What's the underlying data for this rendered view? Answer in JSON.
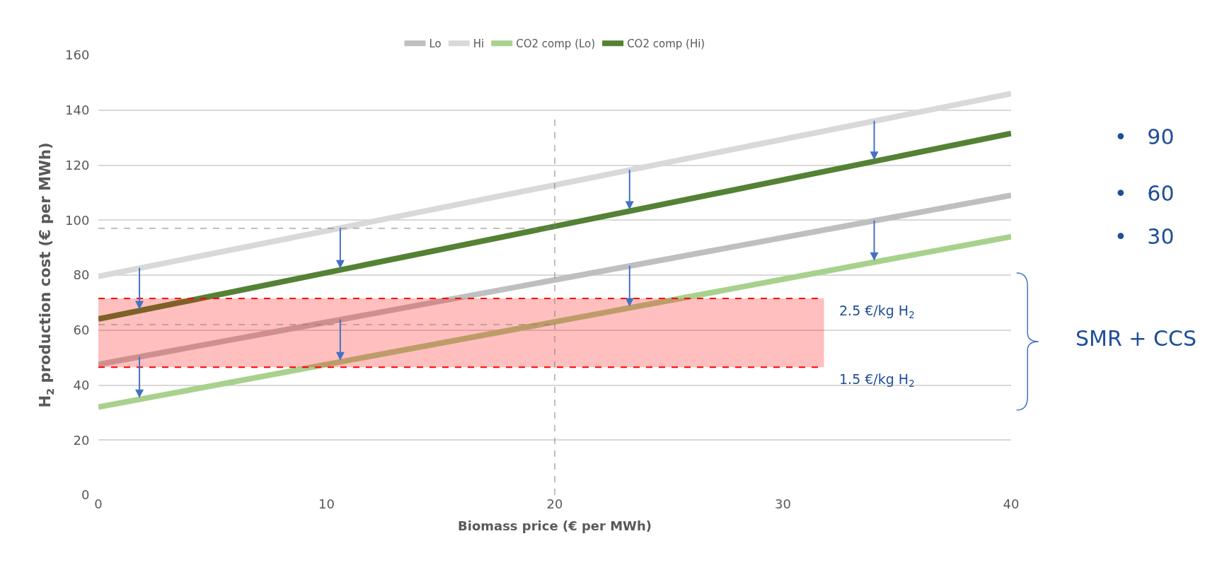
{
  "chart_data": {
    "type": "line",
    "xlabel": "Biomass price (€ per MWh)",
    "ylabel": "H$_{2}$ production cost (€ per MWh)",
    "x": [
      0,
      40
    ],
    "series": [
      {
        "name": "Lo",
        "color": "#bfbfbf",
        "values": [
          47.5,
          109
        ]
      },
      {
        "name": "Hi",
        "color": "#d9d9d9",
        "values": [
          79.5,
          146
        ]
      },
      {
        "name": "CO2 comp (Lo)",
        "color": "#a9d18e",
        "values": [
          32,
          94
        ]
      },
      {
        "name": "CO2 comp (Hi)",
        "color": "#548235",
        "values": [
          64,
          131.5
        ]
      }
    ],
    "xlim": [
      0,
      40
    ],
    "xticks": [
      0,
      10,
      20,
      30,
      40
    ],
    "ylim": [
      0,
      160
    ],
    "yticks": [
      0,
      20,
      40,
      60,
      80,
      100,
      120,
      140,
      160
    ],
    "grid": "y",
    "legend": "top",
    "marker": "none",
    "line_style": "solid",
    "bands": [
      {
        "axis": "y",
        "from": 46.5,
        "to": 71.5,
        "color": "#ff0000",
        "label": "1.5 €/kg H$_{2}$"
      }
    ],
    "ref_lines": [
      {
        "axis": "x",
        "value": 20,
        "color": "#808080",
        "line_style": "dashed"
      },
      {
        "axis": "y",
        "value": 97,
        "color": "#808080",
        "line_style": "dashed"
      },
      {
        "axis": "y",
        "value": 62,
        "color": "#808080",
        "line_style": "dashed"
      },
      {
        "axis": "y",
        "value": 71.5,
        "color": "#ff0000",
        "line_style": "dashed",
        "label": "2.5 €/kg H$_{2}$"
      }
    ],
    "annotations": [
      "•   90",
      "•   60",
      "•   30",
      "SMR + CCS"
    ]
  }
}
